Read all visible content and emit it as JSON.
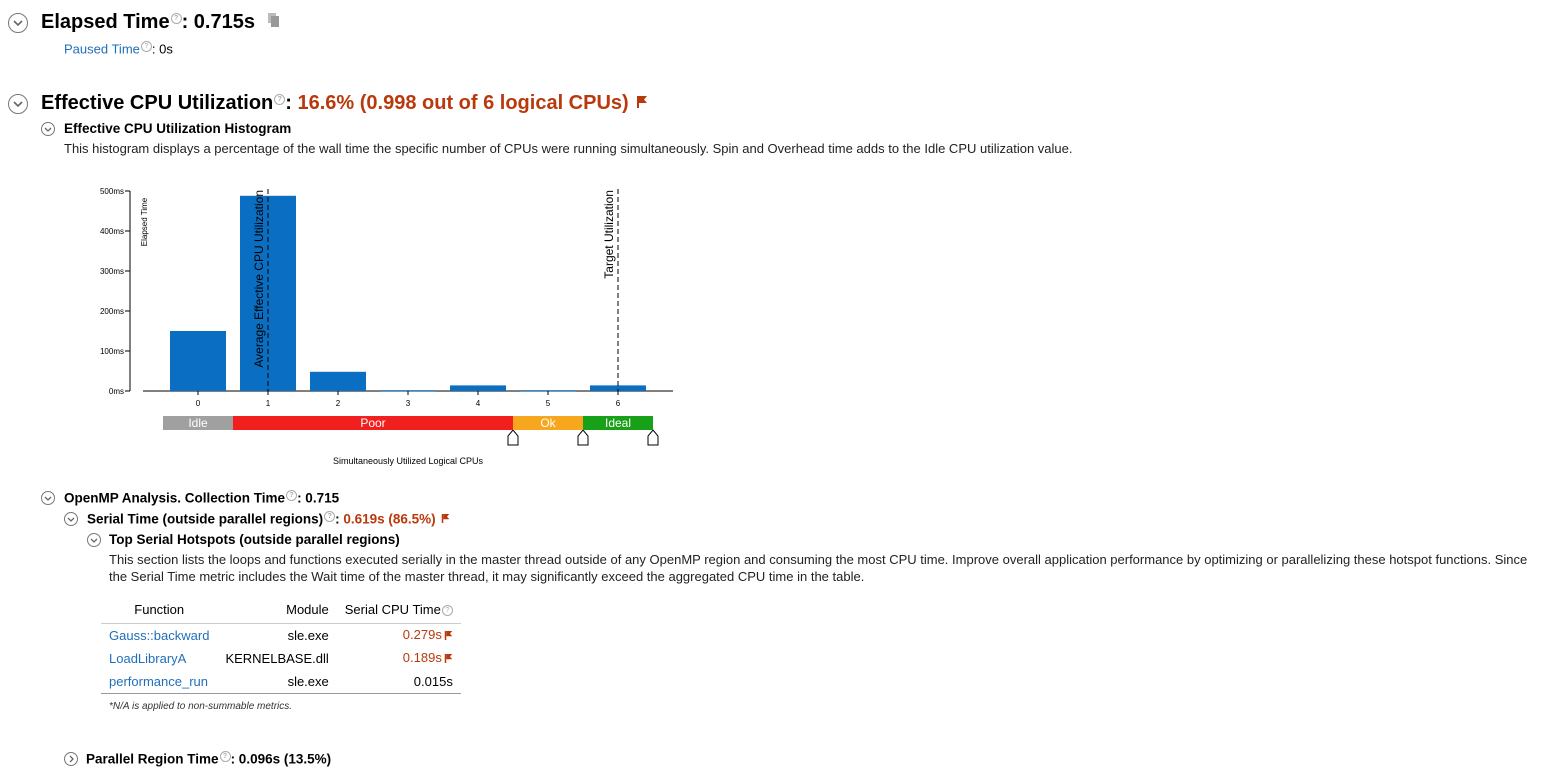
{
  "elapsed": {
    "title": "Elapsed Time",
    "value": ": 0.715s",
    "paused_label": "Paused Time",
    "paused_value": ": 0s"
  },
  "cpu": {
    "title": "Effective CPU Utilization",
    "sep": ": ",
    "value": "16.6% (0.998 out of 6 logical CPUs)"
  },
  "histogram": {
    "title": "Effective CPU Utilization Histogram",
    "description": "This histogram displays a percentage of the wall time the specific number of CPUs were running simultaneously. Spin and Overhead time adds to the Idle CPU utilization value."
  },
  "chart_data": {
    "type": "bar",
    "categories": [
      "0",
      "1",
      "2",
      "3",
      "4",
      "5",
      "6"
    ],
    "values": [
      150,
      488,
      48,
      2,
      14,
      2,
      14
    ],
    "ylabel": "Elapsed Time",
    "xlabel": "Simultaneously Utilized Logical CPUs",
    "ylim": [
      0,
      500
    ],
    "yticks": [
      "0ms",
      "100ms",
      "200ms",
      "300ms",
      "400ms",
      "500ms"
    ],
    "yticks_values": [
      0,
      100,
      200,
      300,
      400,
      500
    ],
    "bar_color": "#0a6fc2",
    "average_line": {
      "x": 1,
      "label": "Average Effective CPU Utilization"
    },
    "target_line": {
      "x": 6,
      "label": "Target Utilization"
    },
    "ranges": [
      {
        "label": "Idle",
        "from": 0,
        "to": 1,
        "color": "#a0a0a0"
      },
      {
        "label": "Poor",
        "from": 1,
        "to": 5,
        "color": "#f21f1f"
      },
      {
        "label": "Ok",
        "from": 5,
        "to": 6,
        "color": "#f7a71d"
      },
      {
        "label": "Ideal",
        "from": 6,
        "to": 7,
        "color": "#18a018"
      }
    ]
  },
  "openmp": {
    "title": "OpenMP Analysis. Collection Time",
    "value": ": 0.715"
  },
  "serial": {
    "title": "Serial Time (outside parallel regions)",
    "sep": ": ",
    "value": "0.619s (86.5%)"
  },
  "hotspots": {
    "title": "Top Serial Hotspots (outside parallel regions)",
    "description": "This section lists the loops and functions executed serially in the master thread outside of any OpenMP region and consuming the most CPU time. Improve overall application performance by optimizing or parallelizing these hotspot functions. Since the Serial Time metric includes the Wait time of the master thread, it may significantly exceed the aggregated CPU time in the table.",
    "columns": [
      "Function",
      "Module",
      "Serial CPU Time"
    ],
    "rows": [
      {
        "function": "Gauss::backward",
        "module": "sle.exe",
        "time": "0.279s"
      },
      {
        "function": "LoadLibraryA",
        "module": "KERNELBASE.dll",
        "time": "0.189s"
      },
      {
        "function": "performance_run",
        "module": "sle.exe",
        "time": "0.015s"
      }
    ],
    "footnote": "*N/A is applied to non-summable metrics."
  },
  "parallel": {
    "title": "Parallel Region Time",
    "value": ": 0.096s (13.5%)"
  }
}
